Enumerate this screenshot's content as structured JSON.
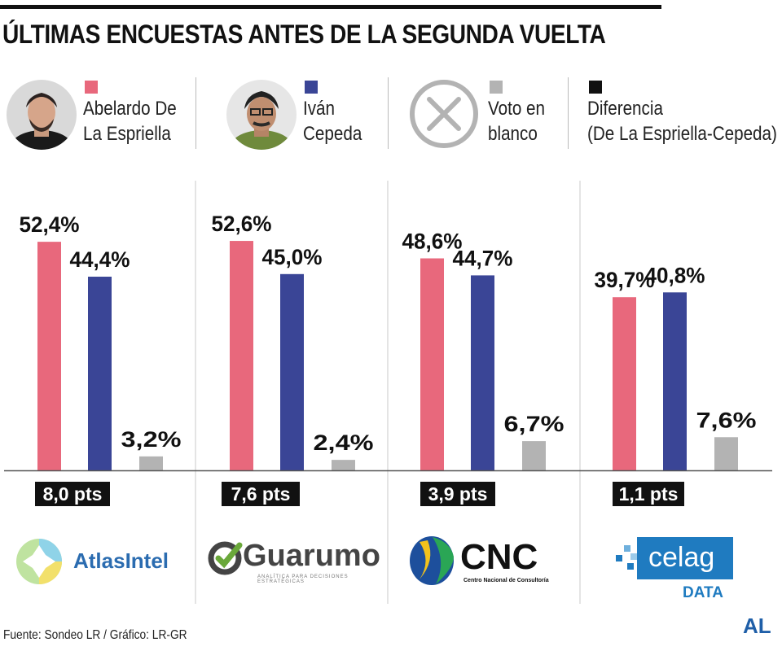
{
  "title": "ÚLTIMAS ENCUESTAS ANTES DE LA SEGUNDA VUELTA",
  "legend": [
    {
      "line1": "Abelardo De",
      "line2": "La Espriella",
      "color": "#e8687c"
    },
    {
      "line1": "Iván",
      "line2": "Cepeda",
      "color": "#3a4596"
    },
    {
      "line1": "Voto en",
      "line2": "blanco",
      "color": "#b3b3b3"
    },
    {
      "line1": "Diferencia",
      "line2": "(De La Espriella-Cepeda)",
      "color": "#111111"
    }
  ],
  "chart_data": {
    "type": "bar",
    "categories": [
      "AtlasIntel",
      "Guarumo",
      "CNC",
      "celag DATA"
    ],
    "series": [
      {
        "name": "Abelardo De La Espriella",
        "values": [
          52.4,
          52.6,
          48.6,
          39.7
        ],
        "labels": [
          "52,4%",
          "52,6%",
          "48,6%",
          "39,7%"
        ],
        "color": "#e8687c"
      },
      {
        "name": "Iván Cepeda",
        "values": [
          44.4,
          45.0,
          44.7,
          40.8
        ],
        "labels": [
          "44,4%",
          "45,0%",
          "44,7%",
          "40,8%"
        ],
        "color": "#3a4596"
      },
      {
        "name": "Voto en blanco",
        "values": [
          3.2,
          2.4,
          6.7,
          7.6
        ],
        "labels": [
          "3,2%",
          "2,4%",
          "6,7%",
          "7,6%"
        ],
        "color": "#b3b3b3"
      }
    ],
    "differences": [
      "8,0 pts",
      "7,6 pts",
      "3,9 pts",
      "1,1 pts"
    ],
    "ylim": [
      0,
      60
    ],
    "grid": false
  },
  "logos": {
    "atlas": {
      "text": "AtlasIntel",
      "color": "#2b6cb0"
    },
    "guarumo": {
      "text": "Guarumo",
      "subtitle": "ANALÍTICA PARA DECISIONES ESTRATÉGICAS"
    },
    "cnc": {
      "text": "CNC",
      "subtitle": "Centro Nacional de Consultoría"
    },
    "celag": {
      "text": "celag",
      "subtitle": "DATA",
      "color": "#1f7bc0"
    }
  },
  "footer": {
    "source": "Fuente: Sondeo LR / Gráfico: LR-GR",
    "brand": "AL"
  }
}
